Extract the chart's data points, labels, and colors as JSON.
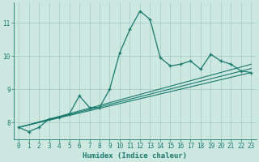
{
  "xlabel": "Humidex (Indice chaleur)",
  "bg_color": "#cce8e0",
  "grid_color": "#aacfc8",
  "line_color": "#1a7a6e",
  "xlim": [
    -0.5,
    23.5
  ],
  "ylim": [
    7.5,
    11.6
  ],
  "yticks": [
    8,
    9,
    10,
    11
  ],
  "xticks": [
    0,
    1,
    2,
    3,
    4,
    5,
    6,
    7,
    8,
    9,
    10,
    11,
    12,
    13,
    14,
    15,
    16,
    17,
    18,
    19,
    20,
    21,
    22,
    23
  ],
  "line1_x": [
    0,
    1,
    2,
    3,
    4,
    5,
    6,
    7,
    8,
    9,
    10,
    11,
    12,
    13,
    14,
    15,
    16,
    17,
    18,
    19,
    20,
    21,
    22,
    23
  ],
  "line1_y": [
    7.85,
    7.72,
    7.85,
    8.1,
    8.15,
    8.25,
    8.8,
    8.45,
    8.45,
    9.0,
    10.1,
    10.8,
    11.35,
    11.1,
    9.95,
    9.7,
    9.75,
    9.85,
    9.6,
    10.05,
    9.85,
    9.75,
    9.55,
    9.5
  ],
  "line2_x": [
    0,
    23
  ],
  "line2_y": [
    7.85,
    9.5
  ],
  "line3_x": [
    0,
    23
  ],
  "line3_y": [
    7.85,
    9.75
  ],
  "line4_x": [
    0,
    23
  ],
  "line4_y": [
    7.85,
    9.62
  ]
}
